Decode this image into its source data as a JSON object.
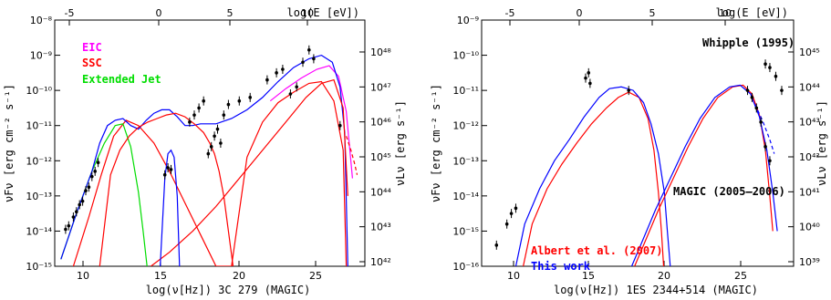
{
  "chart_data": [
    {
      "type": "line",
      "xlabel": "log(ν[Hz])  3C 279 (MAGIC)",
      "toplabel": "log(E [eV])",
      "ylabel": "νFν [erg cm⁻² s⁻¹]",
      "y2label": "νLν [erg s⁻¹]",
      "xlim": [
        7.6,
        27.6
      ],
      "ylim_log": [
        -15,
        -8
      ],
      "x_ticks": [
        "10",
        "15",
        "20",
        "25"
      ],
      "top_ticks": [
        "-5",
        "0",
        "5",
        "10"
      ],
      "y_ticks": [
        "10⁻⁸",
        "10⁻⁹",
        "10⁻¹⁰",
        "10⁻¹¹",
        "10⁻¹²",
        "10⁻¹³",
        "10⁻¹⁴",
        "10⁻¹⁵"
      ],
      "y2_ticks": [
        "10⁴⁸",
        "10⁴⁷",
        "10⁴⁶",
        "10⁴⁵",
        "10⁴⁴",
        "10⁴³",
        "10⁴²"
      ],
      "legend": [
        {
          "label": "EIC",
          "color": "#ff00ff"
        },
        {
          "label": "SSC",
          "color": "#ff0000"
        },
        {
          "label": "Extended Jet",
          "color": "#00dd00"
        }
      ],
      "series": [
        {
          "name": "EIC",
          "color": "#ff00ff",
          "x": [
            21.5,
            22.5,
            23.5,
            24.5,
            25.3,
            25.9,
            26.4,
            26.8
          ],
          "y": [
            -10.3,
            -9.95,
            -9.65,
            -9.4,
            -9.3,
            -9.6,
            -10.6,
            -12.5
          ]
        },
        {
          "name": "SSC",
          "color": "#ff0000",
          "x": [
            8.8,
            9.8,
            10.6,
            11.4,
            12.2,
            13.0,
            14.0,
            15.0,
            16.0,
            17.0,
            18.0,
            19.0,
            20.0,
            21.0,
            22.0,
            23.0,
            24.0,
            24.8,
            25.6,
            26.2,
            26.4
          ],
          "y": [
            -15.0,
            -13.6,
            -12.4,
            -11.3,
            -10.85,
            -11.0,
            -11.5,
            -12.3,
            -13.2,
            -14.1,
            -15.0,
            -15.0,
            -11.9,
            -10.9,
            -10.35,
            -10.05,
            -9.8,
            -9.75,
            -10.3,
            -11.7,
            -15.0
          ]
        },
        {
          "name": "Extended Jet",
          "color": "#00dd00",
          "x": [
            8.0,
            9.0,
            10.0,
            10.8,
            11.5,
            12.0,
            12.5,
            13.0,
            13.3,
            13.55
          ],
          "y": [
            -14.8,
            -13.5,
            -12.3,
            -11.5,
            -11.0,
            -10.95,
            -11.6,
            -12.9,
            -14.0,
            -15.0
          ]
        },
        {
          "name": "",
          "color": "#0000ff",
          "x": [
            8.0,
            9.0,
            10.0,
            10.5,
            11.0,
            11.5,
            12.0,
            12.5,
            13.0,
            13.5,
            14.0,
            14.5,
            15.0,
            15.5,
            16.0,
            16.5,
            17.0,
            18.0,
            19.0,
            20.0,
            21.0,
            22.0,
            23.0,
            24.0,
            24.8,
            25.5,
            26.0,
            26.3,
            26.5
          ],
          "y": [
            -14.8,
            -13.5,
            -12.3,
            -11.5,
            -11.0,
            -10.85,
            -10.8,
            -11.0,
            -11.1,
            -10.85,
            -10.65,
            -10.55,
            -10.55,
            -10.75,
            -11.0,
            -11.0,
            -10.95,
            -10.95,
            -10.8,
            -10.55,
            -10.2,
            -9.75,
            -9.35,
            -9.1,
            -9.0,
            -9.2,
            -9.9,
            -11.2,
            -15.0
          ]
        },
        {
          "name": "",
          "color": "#ff0000",
          "x": [
            10.5,
            11.2,
            11.8,
            12.4,
            13.0,
            13.6,
            14.2,
            14.8,
            15.4,
            16.0,
            16.6,
            17.2,
            17.6,
            17.9,
            18.2,
            18.5,
            18.8,
            19.1
          ],
          "y": [
            -15.0,
            -12.4,
            -11.7,
            -11.3,
            -11.05,
            -10.9,
            -10.8,
            -10.7,
            -10.65,
            -10.75,
            -10.95,
            -11.2,
            -11.5,
            -11.8,
            -12.3,
            -13.0,
            -14.0,
            -15.0
          ]
        },
        {
          "name": "",
          "color": "#ff0000",
          "x": [
            13.8,
            15.0,
            16.5,
            18.0,
            19.5,
            21.0,
            22.5,
            23.8,
            24.8,
            25.6,
            26.2,
            26.5
          ],
          "y": [
            -15.0,
            -14.6,
            -14.0,
            -13.3,
            -12.5,
            -11.7,
            -10.9,
            -10.2,
            -9.8,
            -9.7,
            -10.5,
            -13.0
          ]
        },
        {
          "name": "",
          "color": "#0000ff",
          "x": [
            14.4,
            14.7,
            14.9,
            15.1,
            15.3,
            15.5,
            15.65
          ],
          "y": [
            -15.0,
            -12.5,
            -11.8,
            -11.7,
            -11.9,
            -13.0,
            -15.0
          ]
        },
        {
          "name": "",
          "color": "#ff0000",
          "dashed": true,
          "x": [
            26.4,
            26.7,
            26.95,
            27.1
          ],
          "y": [
            -11.3,
            -11.7,
            -12.1,
            -12.4
          ]
        }
      ],
      "points": [
        {
          "x": 8.3,
          "y": -13.95
        },
        {
          "x": 8.5,
          "y": -13.85
        },
        {
          "x": 8.8,
          "y": -13.6
        },
        {
          "x": 9.0,
          "y": -13.45
        },
        {
          "x": 9.2,
          "y": -13.25
        },
        {
          "x": 9.4,
          "y": -13.15
        },
        {
          "x": 9.6,
          "y": -12.85
        },
        {
          "x": 9.8,
          "y": -12.75
        },
        {
          "x": 10.0,
          "y": -12.45
        },
        {
          "x": 10.2,
          "y": -12.3
        },
        {
          "x": 10.4,
          "y": -12.05
        },
        {
          "x": 14.7,
          "y": -12.4
        },
        {
          "x": 14.9,
          "y": -12.2
        },
        {
          "x": 15.1,
          "y": -12.25
        },
        {
          "x": 16.3,
          "y": -10.9
        },
        {
          "x": 16.6,
          "y": -10.7
        },
        {
          "x": 16.9,
          "y": -10.5
        },
        {
          "x": 17.2,
          "y": -10.3
        },
        {
          "x": 17.5,
          "y": -11.8
        },
        {
          "x": 17.7,
          "y": -11.6
        },
        {
          "x": 17.9,
          "y": -11.3
        },
        {
          "x": 18.1,
          "y": -11.1
        },
        {
          "x": 18.3,
          "y": -11.5
        },
        {
          "x": 18.5,
          "y": -10.7
        },
        {
          "x": 18.8,
          "y": -10.4
        },
        {
          "x": 19.5,
          "y": -10.3
        },
        {
          "x": 20.2,
          "y": -10.2
        },
        {
          "x": 21.3,
          "y": -9.7
        },
        {
          "x": 21.9,
          "y": -9.5
        },
        {
          "x": 22.3,
          "y": -9.4
        },
        {
          "x": 22.8,
          "y": -10.1
        },
        {
          "x": 23.2,
          "y": -9.9
        },
        {
          "x": 23.6,
          "y": -9.2
        },
        {
          "x": 24.0,
          "y": -8.85
        },
        {
          "x": 24.3,
          "y": -9.1
        },
        {
          "x": 26.0,
          "y": -11.0
        }
      ]
    },
    {
      "type": "line",
      "xlabel": "log(ν[Hz])  1ES 2344+514 (MAGIC)",
      "toplabel": "log(E [eV])",
      "ylabel": "νFν [erg cm⁻² s⁻¹]",
      "y2label": "νLν [erg s⁻¹]",
      "xlim": [
        7.6,
        28.6
      ],
      "ylim_log": [
        -16,
        -9
      ],
      "x_ticks": [
        "10",
        "15",
        "20",
        "25"
      ],
      "top_ticks": [
        "-5",
        "0",
        "5",
        "10"
      ],
      "y_ticks": [
        "10⁻⁹",
        "10⁻¹⁰",
        "10⁻¹¹",
        "10⁻¹²",
        "10⁻¹³",
        "10⁻¹⁴",
        "10⁻¹⁵",
        "10⁻¹⁶"
      ],
      "y2_ticks": [
        "10⁴⁵",
        "10⁴⁴",
        "10⁴³",
        "10⁴²",
        "10⁴¹",
        "10⁴⁰",
        "10³⁹"
      ],
      "annotations": [
        "Whipple (1995)",
        "MAGIC (2005–2006)"
      ],
      "legend": [
        {
          "label": "Albert et al. (2007)",
          "color": "#ff0000"
        },
        {
          "label": "This work",
          "color": "#0000ff"
        }
      ],
      "series": [
        {
          "name": "Albert et al. (2007)",
          "color": "#ff0000",
          "x": [
            10.4,
            11.0,
            12.0,
            13.0,
            14.0,
            15.0,
            16.0,
            16.8,
            17.5,
            18.2,
            18.8,
            19.2,
            19.5,
            19.7,
            19.85
          ],
          "y": [
            -16.0,
            -14.8,
            -13.8,
            -13.1,
            -12.5,
            -11.95,
            -11.5,
            -11.2,
            -11.05,
            -11.2,
            -11.8,
            -12.7,
            -13.9,
            -15.0,
            -16.0
          ]
        },
        {
          "name": "This work",
          "color": "#0000ff",
          "x": [
            9.9,
            10.5,
            11.5,
            12.5,
            13.5,
            14.5,
            15.5,
            16.2,
            17.0,
            17.8,
            18.5,
            19.0,
            19.5,
            19.9,
            20.1,
            20.3
          ],
          "y": [
            -16.0,
            -14.8,
            -13.8,
            -13.0,
            -12.4,
            -11.75,
            -11.2,
            -10.95,
            -10.9,
            -11.0,
            -11.35,
            -11.95,
            -12.8,
            -13.9,
            -15.0,
            -16.0
          ]
        },
        {
          "name": "",
          "color": "#ff0000",
          "x": [
            17.9,
            18.5,
            19.5,
            20.5,
            21.5,
            22.5,
            23.5,
            24.5,
            25.2,
            25.8,
            26.3,
            26.7,
            27.0,
            27.2
          ],
          "y": [
            -16.0,
            -15.4,
            -14.4,
            -13.5,
            -12.6,
            -11.8,
            -11.2,
            -10.9,
            -10.85,
            -11.1,
            -11.7,
            -12.7,
            -14.0,
            -15.0
          ]
        },
        {
          "name": "",
          "color": "#0000ff",
          "x": [
            17.7,
            18.3,
            19.3,
            20.3,
            21.3,
            22.3,
            23.3,
            24.3,
            25.0,
            25.7,
            26.3,
            26.8,
            27.2,
            27.5
          ],
          "y": [
            -16.0,
            -15.4,
            -14.4,
            -13.5,
            -12.6,
            -11.8,
            -11.2,
            -10.9,
            -10.85,
            -11.1,
            -11.75,
            -12.7,
            -13.9,
            -15.0
          ]
        },
        {
          "name": "",
          "color": "#0000ff",
          "dashed": true,
          "x": [
            26.0,
            26.5,
            27.0,
            27.3
          ],
          "y": [
            -11.4,
            -11.85,
            -12.4,
            -12.8
          ]
        }
      ],
      "points": [
        {
          "x": 8.6,
          "y": -15.4
        },
        {
          "x": 9.3,
          "y": -14.8
        },
        {
          "x": 9.6,
          "y": -14.5
        },
        {
          "x": 9.9,
          "y": -14.35
        },
        {
          "x": 14.6,
          "y": -10.65
        },
        {
          "x": 14.8,
          "y": -10.5
        },
        {
          "x": 14.9,
          "y": -10.8
        },
        {
          "x": 17.5,
          "y": -11.0
        },
        {
          "x": 26.7,
          "y": -10.25
        },
        {
          "x": 27.0,
          "y": -10.35
        },
        {
          "x": 27.4,
          "y": -10.6
        },
        {
          "x": 27.8,
          "y": -11.0
        },
        {
          "x": 25.5,
          "y": -11.0
        },
        {
          "x": 25.8,
          "y": -11.2
        },
        {
          "x": 26.1,
          "y": -11.5
        },
        {
          "x": 26.4,
          "y": -11.9
        },
        {
          "x": 26.7,
          "y": -12.6
        },
        {
          "x": 27.0,
          "y": -13.0
        }
      ]
    }
  ]
}
